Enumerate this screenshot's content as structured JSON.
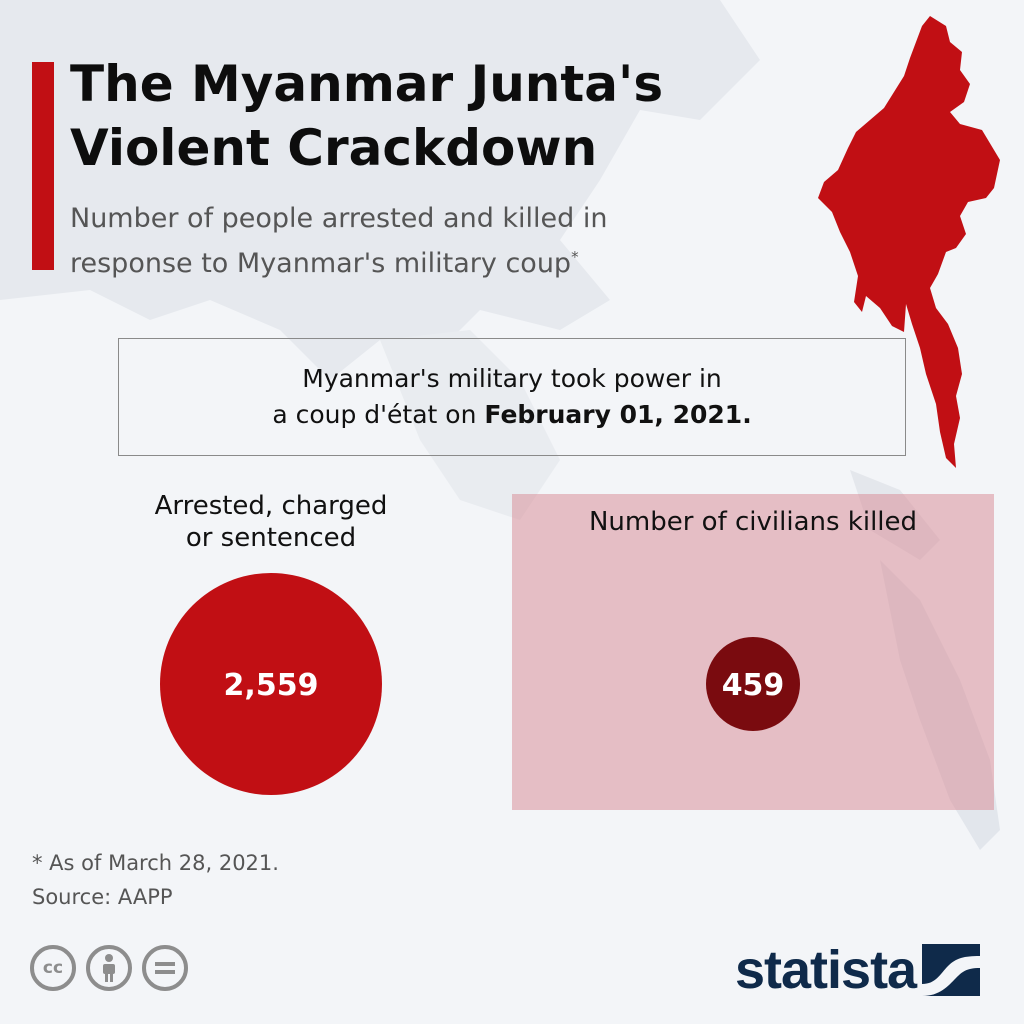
{
  "header": {
    "title_line1": "The Myanmar Junta's",
    "title_line2": "Violent Crackdown",
    "subtitle_line1": "Number of people arrested and killed in",
    "subtitle_line2": "response to Myanmar's military coup",
    "subtitle_mark": "*"
  },
  "note": {
    "line1": "Myanmar's military took power in",
    "line2_prefix": "a coup d'état on ",
    "line2_bold": "February 01, 2021."
  },
  "chart_data": {
    "type": "bubble",
    "title": "The Myanmar Junta's Violent Crackdown",
    "subtitle": "Number of people arrested and killed in response to Myanmar's military coup*",
    "categories": [
      "Arrested, charged or sentenced",
      "Number of civilians killed"
    ],
    "values": [
      2559,
      459
    ],
    "value_labels": [
      "2,559",
      "459"
    ],
    "colors": [
      "#c10f14",
      "#7a0b0f"
    ]
  },
  "labels": {
    "arrested_line1": "Arrested, charged",
    "arrested_line2": "or sentenced",
    "killed": "Number of civilians killed"
  },
  "footer": {
    "footnote": "* As of March 28, 2021.",
    "source": "Source: AAPP",
    "brand": "statista",
    "cc_icons": [
      "cc-icon",
      "attribution-icon",
      "no-derivatives-icon"
    ]
  },
  "colors": {
    "accent": "#c10f14",
    "killed_panel": "#e4b9bf",
    "brand": "#0f2a4a",
    "background": "#f3f5f8"
  }
}
